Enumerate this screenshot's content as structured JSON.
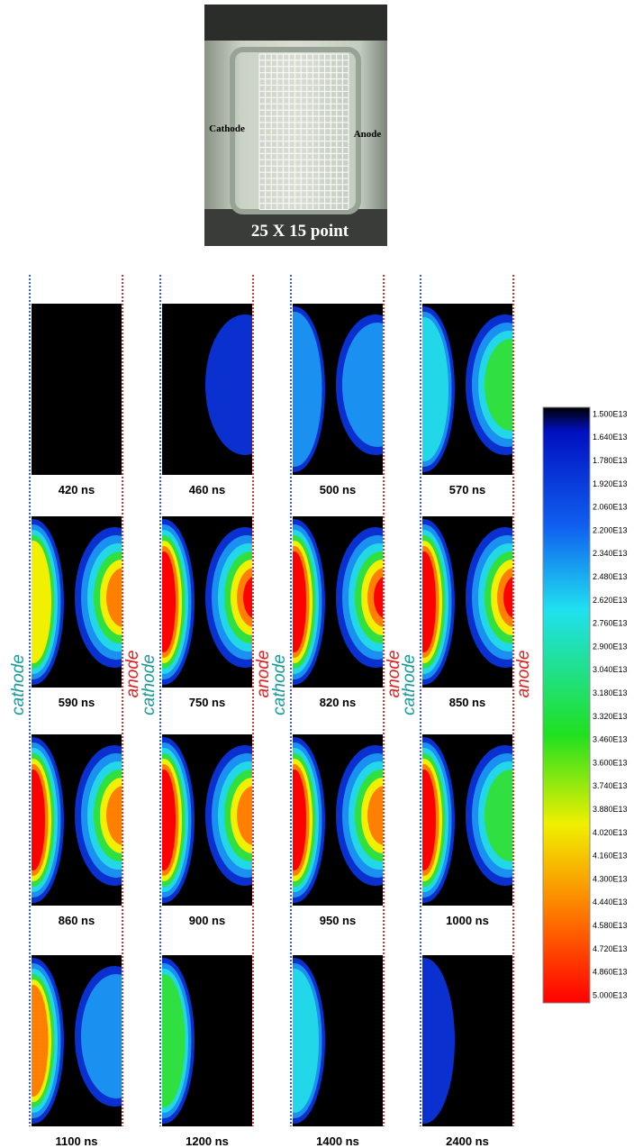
{
  "photo": {
    "cathode": "Cathode",
    "anode": "Anode",
    "caption": "25 X 15 point"
  },
  "panels": [
    "420 ns",
    "460 ns",
    "500 ns",
    "570 ns",
    "590 ns",
    "750 ns",
    "820 ns",
    "850 ns",
    "860 ns",
    "900 ns",
    "950 ns",
    "1000 ns",
    "1100 ns",
    "1200 ns",
    "1400 ns",
    "2400 ns"
  ],
  "sides": {
    "cathode": [
      "cathode",
      "cathode",
      "cathode",
      "cathode"
    ],
    "anode": [
      "anode",
      "anode",
      "anode",
      "anode"
    ]
  },
  "colorbar": [
    "1.500E13",
    "1.640E13",
    "1.780E13",
    "1.920E13",
    "2.060E13",
    "2.200E13",
    "2.340E13",
    "2.480E13",
    "2.620E13",
    "2.760E13",
    "2.900E13",
    "3.040E13",
    "3.180E13",
    "3.320E13",
    "3.460E13",
    "3.600E13",
    "3.740E13",
    "3.880E13",
    "4.020E13",
    "4.160E13",
    "4.300E13",
    "4.440E13",
    "4.580E13",
    "4.720E13",
    "4.860E13",
    "5.000E13"
  ]
}
